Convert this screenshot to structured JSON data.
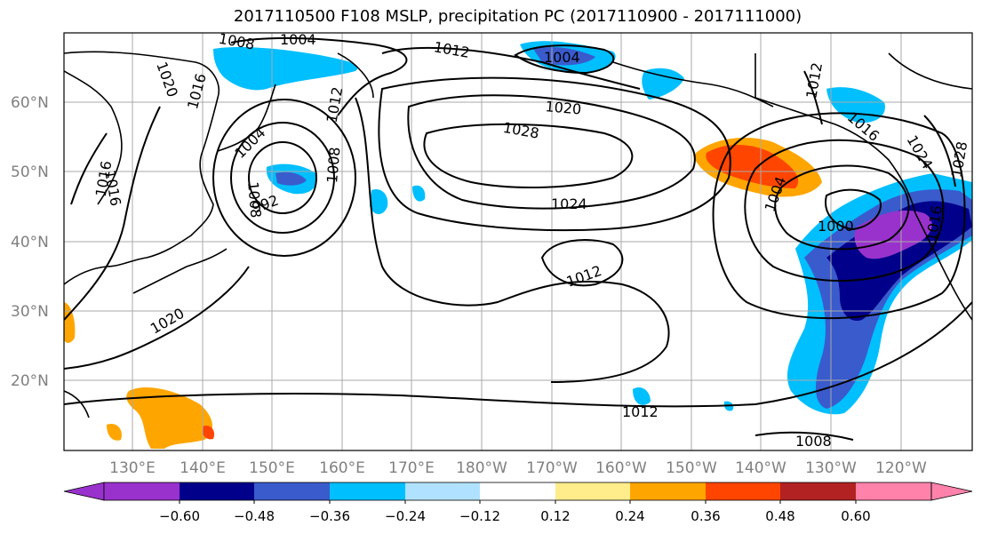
{
  "title": "2017110500 F108 MSLP, precipitation PC (2017110900 - 2017111000)",
  "map": {
    "lat_labels": [
      "60°N",
      "50°N",
      "40°N",
      "30°N",
      "20°N"
    ],
    "lon_labels": [
      "130°E",
      "140°E",
      "150°E",
      "160°E",
      "170°E",
      "180°W",
      "170°W",
      "160°W",
      "150°W",
      "140°W",
      "130°W",
      "120°W"
    ],
    "contour_labels": [
      "1008",
      "1004",
      "1012",
      "1004",
      "1020",
      "1016",
      "1020",
      "1012",
      "1028",
      "1004",
      "1008",
      "1008",
      "992",
      "1024",
      "1012",
      "1020",
      "1012",
      "1008",
      "1004",
      "1000",
      "1024",
      "1028",
      "1016",
      "1012",
      "1016",
      "1016",
      "1016"
    ]
  },
  "colorbar": {
    "tick_labels": [
      "−0.60",
      "−0.48",
      "−0.36",
      "−0.24",
      "−0.12",
      "0.12",
      "0.24",
      "0.36",
      "0.48",
      "0.60"
    ],
    "colors": [
      "#9932cc",
      "#00008b",
      "#3a5bcc",
      "#00bfff",
      "#b0e2ff",
      "#ffffff",
      "#ffec8b",
      "#ffa500",
      "#ff4500",
      "#b22222",
      "#ff82ab"
    ]
  }
}
